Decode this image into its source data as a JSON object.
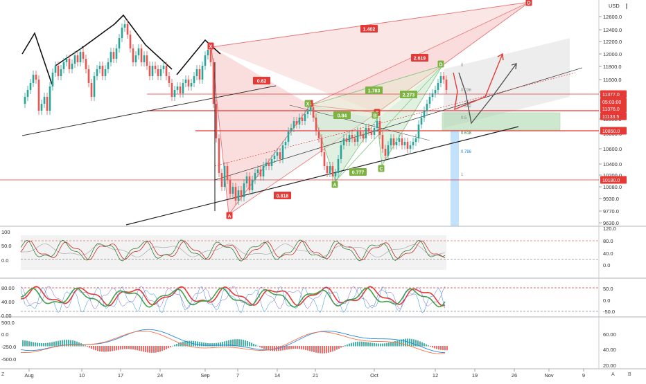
{
  "header": {
    "currency": "USD",
    "menu_icon": "hamburger-icon"
  },
  "price_axis": {
    "ticks": [
      "12600.0",
      "12400.0",
      "12200.0",
      "12000.0",
      "11800.0",
      "11600.0",
      "11400.0",
      "11000.0",
      "10800.0",
      "10600.0",
      "10400.0",
      "10200.0",
      "10080.0",
      "9930.0",
      "9770.0",
      "9630.0"
    ],
    "tick_values": [
      12600,
      12400,
      12200,
      12000,
      11800,
      11600,
      11400,
      11000,
      10800,
      10600,
      10400,
      10200,
      10080,
      9930,
      9770,
      9630
    ],
    "badges": [
      {
        "label": "11377.0",
        "value": 11377,
        "color": "#e53935"
      },
      {
        "label": "05:03:00",
        "value": 11305,
        "color": "#e53935"
      },
      {
        "label": "11376.0",
        "value": 11376,
        "color": "#e53935"
      },
      {
        "label": "11133.5",
        "value": 11133.5,
        "color": "#e53935"
      },
      {
        "label": "10850.0",
        "value": 10850,
        "color": "#e53935"
      },
      {
        "label": "10180.0",
        "value": 10180,
        "color": "#e53935"
      }
    ]
  },
  "time_axis": {
    "labels": [
      "Aug",
      "10",
      "17",
      "24",
      "Sep",
      "7",
      "14",
      "21",
      "Oct",
      "12",
      "19",
      "26",
      "Nov",
      "9"
    ]
  },
  "pattern_labels": {
    "points": [
      "X",
      "A",
      "B",
      "C",
      "D",
      "X",
      "A",
      "B",
      "C",
      "D"
    ],
    "ratios": [
      "1.402",
      "2.619",
      "0.62",
      "1.783",
      "2.273",
      "0.84",
      "0.777",
      "0.818"
    ]
  },
  "fib_levels": [
    "0",
    "0.236",
    "0.382",
    "0.5",
    "0.618",
    "0.786",
    "1"
  ],
  "osc1_axis": {
    "ticks": [
      "120.0",
      "80.0",
      "40.0",
      "0.0"
    ],
    "left_ticks": [
      "100",
      "50.0",
      "0.0"
    ]
  },
  "osc2_axis": {
    "ticks": [
      "50.0",
      "0.0",
      "-50.0"
    ],
    "left_ticks": [
      "80.00",
      "40.00",
      "0.00"
    ]
  },
  "osc3_axis": {
    "ticks": [
      "60.00",
      "40.00",
      "20.00"
    ],
    "left_ticks": [
      "500.0",
      "0.0",
      "-250.0",
      "-500.0"
    ]
  },
  "corner_buttons": [
    "Z",
    "A",
    "B"
  ],
  "colors": {
    "bull": "#26a69a",
    "bear": "#ef5350",
    "pattern_red": "#e53935",
    "pattern_green": "#66bb6a"
  }
}
